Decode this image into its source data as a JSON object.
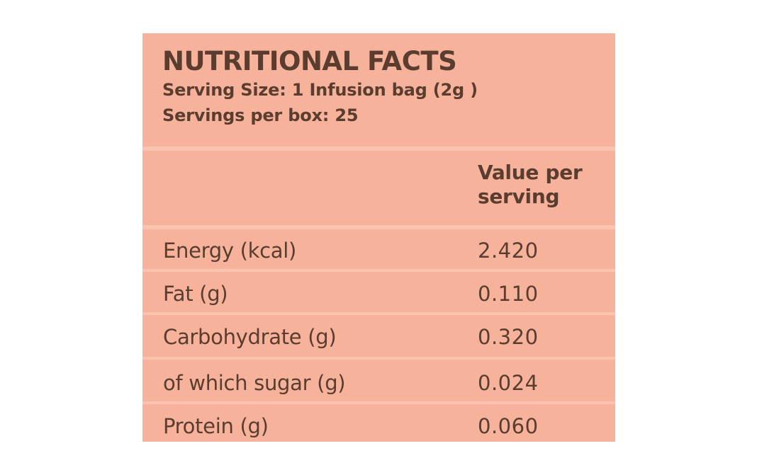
{
  "label": {
    "title": "NUTRITIONAL FACTS",
    "serving_size": "Serving Size: 1 Infusion bag (2g )",
    "servings_per_box": "Servings per box: 25",
    "column_header_line1": "Value per",
    "column_header_line2": "serving",
    "rows": [
      {
        "name": "Energy (kcal)",
        "value": "2.420"
      },
      {
        "name": "Fat (g)",
        "value": "0.110"
      },
      {
        "name": "Carbohydrate (g)",
        "value": "0.320"
      },
      {
        "name": "of which sugar (g)",
        "value": "0.024"
      },
      {
        "name": "Protein (g)",
        "value": "0.060"
      }
    ]
  },
  "colors": {
    "background": "#f6b29b",
    "rule": "#fbc4b0",
    "text": "#5a3d2e"
  }
}
